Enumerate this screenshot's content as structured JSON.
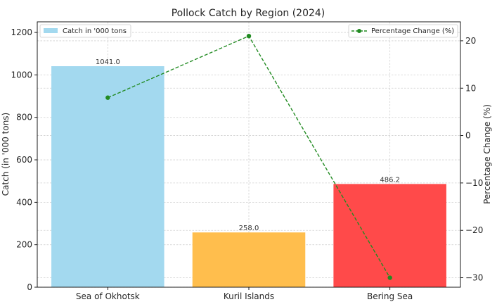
{
  "chart_data": {
    "type": "bar",
    "title": "Pollock Catch by Region (2024)",
    "categories": [
      "Sea of Okhotsk",
      "Kuril Islands",
      "Bering Sea"
    ],
    "series": [
      {
        "name": "Catch in '000 tons",
        "type": "bar",
        "axis": "left",
        "values": [
          1041.0,
          258.0,
          486.2
        ],
        "value_labels": [
          "1041.0",
          "258.0",
          "486.2"
        ],
        "colors": [
          "#a3d9ef",
          "#ffbe4d",
          "#ff4a4a"
        ]
      },
      {
        "name": "Percentage Change (%)",
        "type": "line",
        "axis": "right",
        "values": [
          8,
          21,
          -30
        ],
        "color": "#228b22",
        "line_style": "dashed",
        "marker": "circle"
      }
    ],
    "ylabel": "Catch (in '000 tons)",
    "y2label": "Percentage Change (%)",
    "ylim": [
      0,
      1250
    ],
    "y2lim": [
      -32,
      24
    ],
    "yticks": [
      0,
      200,
      400,
      600,
      800,
      1000,
      1200
    ],
    "y2ticks": [
      20,
      10,
      0,
      -10,
      -20,
      -30
    ],
    "y2tick_labels": [
      "20",
      "10",
      "0",
      "−10",
      "−20",
      "−30"
    ],
    "grid": true,
    "legend_left_position": "top-left",
    "legend_right_position": "top-right"
  }
}
